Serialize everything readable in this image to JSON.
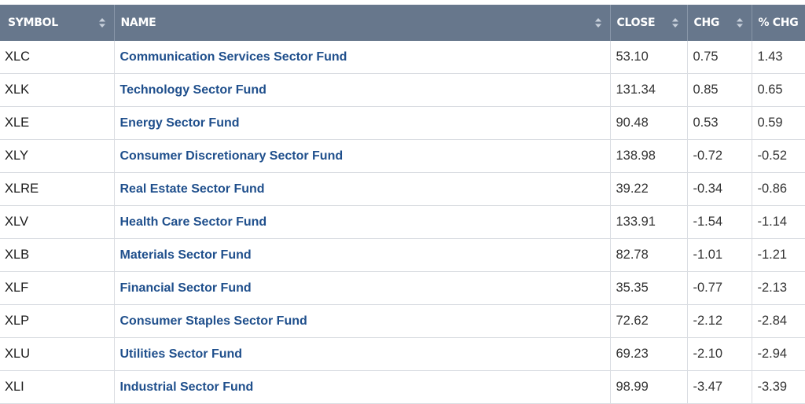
{
  "table": {
    "headers": {
      "symbol": "SYMBOL",
      "name": "NAME",
      "close": "CLOSE",
      "chg": "CHG",
      "pct_chg": "% CHG"
    },
    "rows": [
      {
        "symbol": "XLC",
        "name": "Communication Services Sector Fund",
        "close": "53.10",
        "chg": "0.75",
        "pct_chg": "1.43"
      },
      {
        "symbol": "XLK",
        "name": "Technology Sector Fund",
        "close": "131.34",
        "chg": "0.85",
        "pct_chg": "0.65"
      },
      {
        "symbol": "XLE",
        "name": "Energy Sector Fund",
        "close": "90.48",
        "chg": "0.53",
        "pct_chg": "0.59"
      },
      {
        "symbol": "XLY",
        "name": "Consumer Discretionary Sector Fund",
        "close": "138.98",
        "chg": "-0.72",
        "pct_chg": "-0.52"
      },
      {
        "symbol": "XLRE",
        "name": "Real Estate Sector Fund",
        "close": "39.22",
        "chg": "-0.34",
        "pct_chg": "-0.86"
      },
      {
        "symbol": "XLV",
        "name": "Health Care Sector Fund",
        "close": "133.91",
        "chg": "-1.54",
        "pct_chg": "-1.14"
      },
      {
        "symbol": "XLB",
        "name": "Materials Sector Fund",
        "close": "82.78",
        "chg": "-1.01",
        "pct_chg": "-1.21"
      },
      {
        "symbol": "XLF",
        "name": "Financial Sector Fund",
        "close": "35.35",
        "chg": "-0.77",
        "pct_chg": "-2.13"
      },
      {
        "symbol": "XLP",
        "name": "Consumer Staples Sector Fund",
        "close": "72.62",
        "chg": "-2.12",
        "pct_chg": "-2.84"
      },
      {
        "symbol": "XLU",
        "name": "Utilities Sector Fund",
        "close": "69.23",
        "chg": "-2.10",
        "pct_chg": "-2.94"
      },
      {
        "symbol": "XLI",
        "name": "Industrial Sector Fund",
        "close": "98.99",
        "chg": "-3.47",
        "pct_chg": "-3.39"
      }
    ]
  },
  "colors": {
    "header_bg": "#67778c",
    "link": "#1f4f8c",
    "row_border": "#dadde2"
  },
  "icons": {
    "sort": "sort-icon"
  }
}
